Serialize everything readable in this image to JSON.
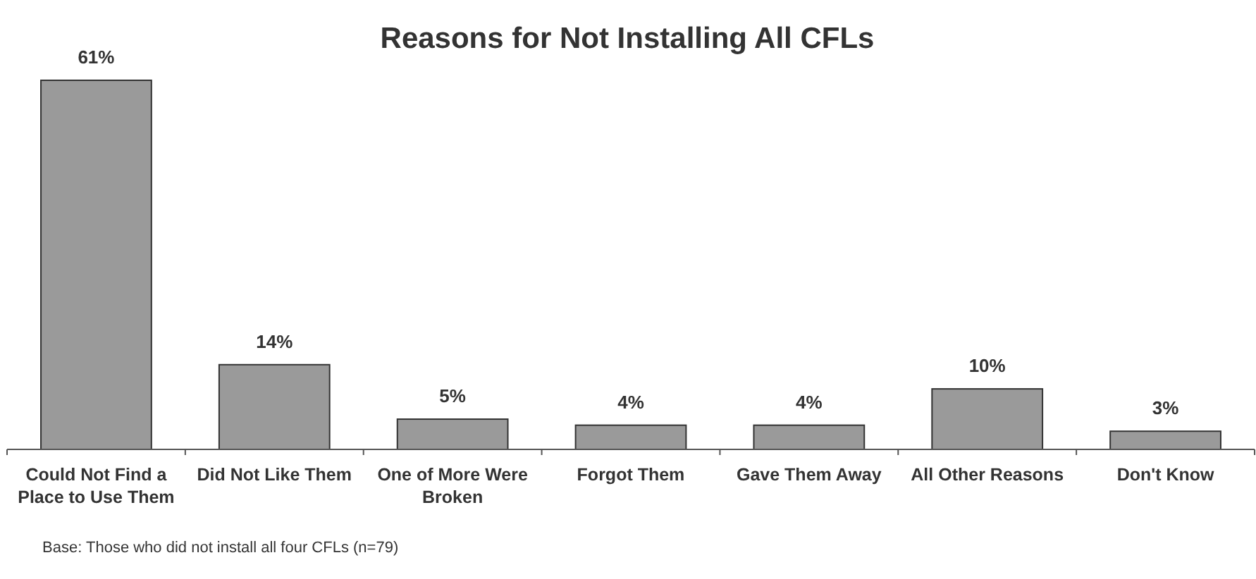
{
  "chart_data": {
    "type": "bar",
    "title": "Reasons for Not Installing All CFLs",
    "categories": [
      "Could Not Find a Place to Use Them",
      "Did Not Like Them",
      "One of More Were Broken",
      "Forgot Them",
      "Gave Them Away",
      "All Other Reasons",
      "Don't Know"
    ],
    "values": [
      61,
      14,
      5,
      4,
      4,
      10,
      3
    ],
    "color": "#9a9a9a",
    "data_labels": true,
    "value_labels": [
      "61%",
      "14%",
      "5%",
      "4%",
      "4%",
      "10%",
      "3%"
    ],
    "annotations": [
      "Base:  Those who did not install all four CFLs (n=79)"
    ]
  }
}
